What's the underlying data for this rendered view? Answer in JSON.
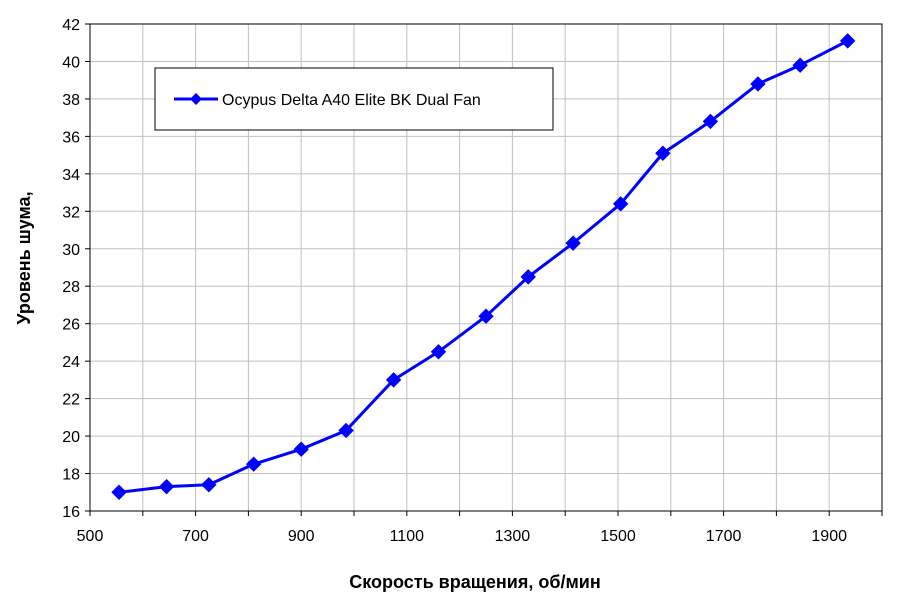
{
  "chart_data": {
    "type": "line",
    "title": "",
    "xlabel": "Скорость вращения, об/мин",
    "ylabel": "Уровень шума,",
    "xlim": [
      500,
      2000
    ],
    "ylim": [
      16,
      42
    ],
    "xticks": [
      500,
      700,
      900,
      1100,
      1300,
      1500,
      1700,
      1900
    ],
    "yticks": [
      16,
      18,
      20,
      22,
      24,
      26,
      28,
      30,
      32,
      34,
      36,
      38,
      40,
      42
    ],
    "grid": true,
    "legend_position": "top-left",
    "series": [
      {
        "name": "Ocypus Delta A40 Elite BK Dual Fan",
        "color": "#0000ff",
        "marker": "diamond",
        "x": [
          555,
          645,
          725,
          810,
          900,
          985,
          1075,
          1160,
          1250,
          1330,
          1415,
          1505,
          1585,
          1675,
          1765,
          1845,
          1935
        ],
        "y": [
          17.0,
          17.3,
          17.4,
          18.5,
          19.3,
          20.3,
          23.0,
          24.5,
          26.4,
          28.5,
          30.3,
          32.4,
          35.1,
          36.8,
          38.8,
          39.8,
          41.1
        ]
      }
    ]
  }
}
